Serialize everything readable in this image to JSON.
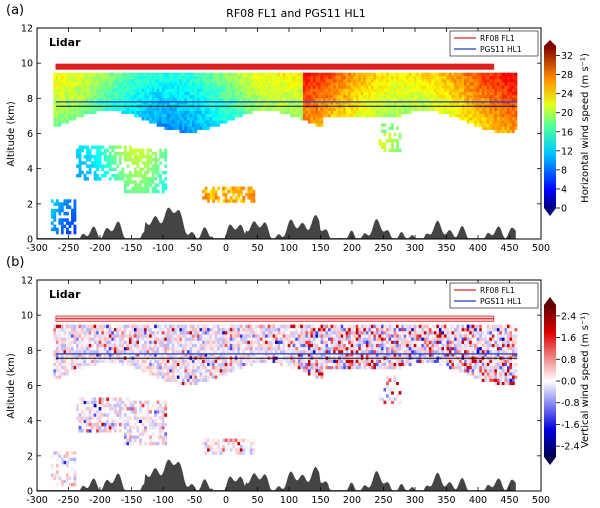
{
  "figure": {
    "title": "RF08 FL1 and PGS11 HL1"
  },
  "chart_data": [
    {
      "type": "heatmap",
      "panel_label": "(a)",
      "inner_label": "Lidar",
      "ylabel": "Altitude (km)",
      "xlim": [
        -300,
        500
      ],
      "ylim": [
        0,
        12
      ],
      "xticks": [
        -300,
        -250,
        -200,
        -150,
        -100,
        -50,
        0,
        50,
        100,
        150,
        200,
        250,
        300,
        350,
        400,
        450,
        500
      ],
      "yticks": [
        0,
        2,
        4,
        6,
        8,
        10,
        12
      ],
      "legend": [
        {
          "name": "RF08 FL1",
          "color": "#d62728"
        },
        {
          "name": "PGS11 HL1",
          "color": "#1f3fbf"
        }
      ],
      "flight_lines": [
        {
          "name": "RF08 FL1",
          "x": [
            -270,
            425
          ],
          "y": 9.8
        },
        {
          "name": "PGS11 HL1",
          "x": [
            -270,
            462
          ],
          "y": 7.8
        }
      ],
      "colorbar": {
        "label": "Horizontal wind speed (m s⁻¹)",
        "min": 0,
        "max": 34,
        "ticks": [
          "0",
          "4",
          "8",
          "12",
          "16",
          "20",
          "24",
          "28",
          "32"
        ],
        "colormap": "jet"
      }
    },
    {
      "type": "heatmap",
      "panel_label": "(b)",
      "inner_label": "Lidar",
      "ylabel": "Altitude (km)",
      "xlim": [
        -300,
        500
      ],
      "ylim": [
        0,
        12
      ],
      "xticks": [
        -300,
        -250,
        -200,
        -150,
        -100,
        -50,
        0,
        50,
        100,
        150,
        200,
        250,
        300,
        350,
        400,
        450,
        500
      ],
      "yticks": [
        0,
        2,
        4,
        6,
        8,
        10,
        12
      ],
      "legend": [
        {
          "name": "RF08 FL1",
          "color": "#d62728"
        },
        {
          "name": "PGS11 HL1",
          "color": "#1f3fbf"
        }
      ],
      "flight_lines": [
        {
          "name": "RF08 FL1",
          "x": [
            -270,
            425
          ],
          "y": 9.8
        },
        {
          "name": "PGS11 HL1",
          "x": [
            -270,
            462
          ],
          "y": 7.8
        }
      ],
      "colorbar": {
        "label": "Vertical wind speed (m s⁻¹)",
        "min": -2.8,
        "max": 2.8,
        "ticks": [
          "-2.4",
          "-1.6",
          "-0.8",
          "0.0",
          "0.8",
          "1.6",
          "2.4"
        ],
        "colormap": "seismic"
      }
    }
  ]
}
